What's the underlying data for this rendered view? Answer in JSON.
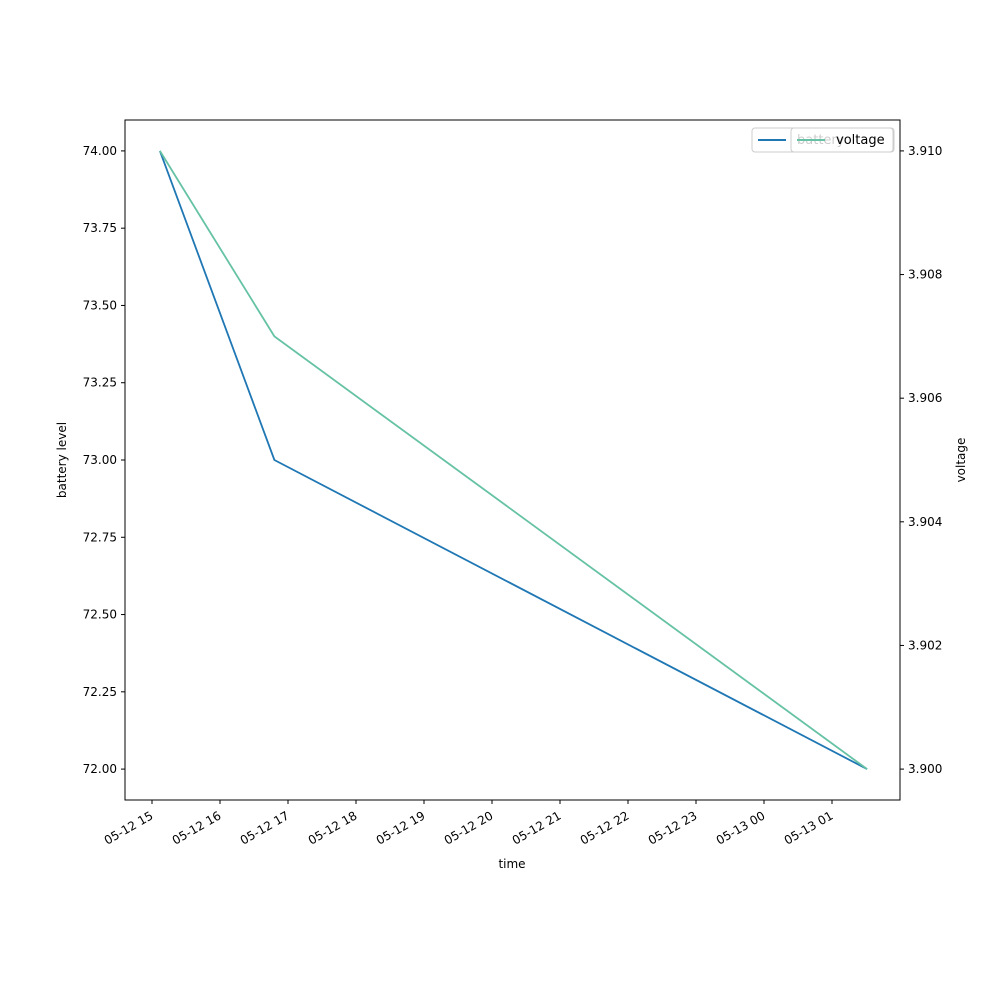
{
  "chart_data": {
    "type": "line",
    "title": "",
    "xlabel": "time",
    "x": [
      "2024-05-12T15:07",
      "2024-05-12T16:48",
      "2024-05-13T01:31"
    ],
    "x_tick_labels": [
      "05-12 15",
      "05-12 16",
      "05-12 17",
      "05-12 18",
      "05-12 19",
      "05-12 20",
      "05-12 21",
      "05-12 22",
      "05-12 23",
      "05-13 00",
      "05-13 01"
    ],
    "left_axis": {
      "ylabel": "battery level",
      "ylim": [
        71.9,
        74.1
      ],
      "ticks": [
        "72.00",
        "72.25",
        "72.50",
        "72.75",
        "73.00",
        "73.25",
        "73.50",
        "73.75",
        "74.00"
      ]
    },
    "right_axis": {
      "ylabel": "voltage",
      "ylim": [
        3.8995,
        3.9105
      ],
      "ticks": [
        "3.900",
        "3.902",
        "3.904",
        "3.906",
        "3.908",
        "3.910"
      ]
    },
    "series": [
      {
        "name": "battery",
        "axis": "left",
        "color": "#1f77b4",
        "values": [
          74.0,
          73.0,
          72.0
        ]
      },
      {
        "name": "voltage",
        "axis": "right",
        "color": "#66c2a5",
        "values": [
          3.91,
          3.907,
          3.9
        ]
      }
    ],
    "legend": [
      "battery",
      "voltage"
    ],
    "legend_placement": "top-right",
    "grid": false
  }
}
